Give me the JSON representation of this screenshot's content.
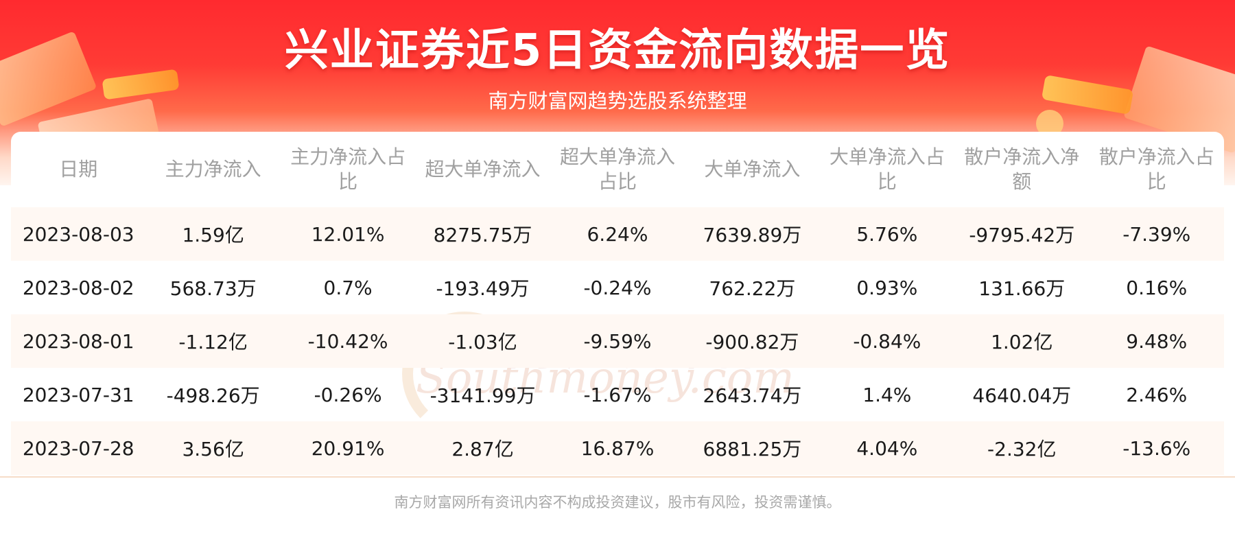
{
  "header": {
    "title": "兴业证券近5日资金流向数据一览",
    "subtitle": "南方财富网趋势选股系统整理"
  },
  "watermark": {
    "cn": "南方财富网",
    "en": "Southmoney.com"
  },
  "chart_data": {
    "type": "table",
    "columns": [
      "日期",
      "主力净流入",
      "主力净流入占比",
      "超大单净流入",
      "超大单净流入占比",
      "大单净流入",
      "大单净流入占比",
      "散户净流入净额",
      "散户净流入占比"
    ],
    "rows": [
      [
        "2023-08-03",
        "1.59亿",
        "12.01%",
        "8275.75万",
        "6.24%",
        "7639.89万",
        "5.76%",
        "-9795.42万",
        "-7.39%"
      ],
      [
        "2023-08-02",
        "568.73万",
        "0.7%",
        "-193.49万",
        "-0.24%",
        "762.22万",
        "0.93%",
        "131.66万",
        "0.16%"
      ],
      [
        "2023-08-01",
        "-1.12亿",
        "-10.42%",
        "-1.03亿",
        "-9.59%",
        "-900.82万",
        "-0.84%",
        "1.02亿",
        "9.48%"
      ],
      [
        "2023-07-31",
        "-498.26万",
        "-0.26%",
        "-3141.99万",
        "-1.67%",
        "2643.74万",
        "1.4%",
        "4640.04万",
        "2.46%"
      ],
      [
        "2023-07-28",
        "3.56亿",
        "20.91%",
        "2.87亿",
        "16.87%",
        "6881.25万",
        "4.04%",
        "-2.32亿",
        "-13.6%"
      ]
    ]
  },
  "footer": {
    "disclaimer": "南方财富网所有资讯内容不构成投资建议，股市有风险，投资需谨慎。"
  },
  "colors": {
    "banner_red": "#ff2a2f",
    "header_text": "#a0a0a0",
    "row_alt": "#fff8f3",
    "body_text": "#1a1a1a"
  }
}
